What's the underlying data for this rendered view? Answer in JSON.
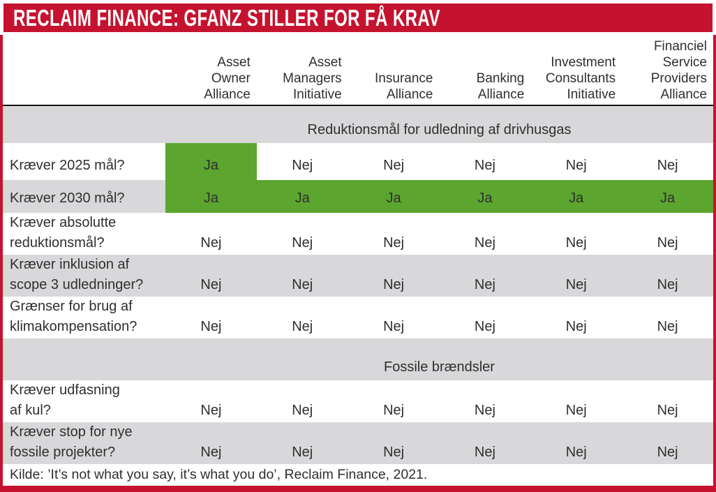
{
  "colors": {
    "red": "#c5132f",
    "green": "#5ca52e",
    "gray": "#d8d8db",
    "ink": "#2f2f2f"
  },
  "title_bar": {
    "title": "RECLAIM FINANCE: GFANZ STILLER FOR FÅ KRAV"
  },
  "table": {
    "columns": [
      {
        "lines": [
          "Asset",
          "Owner",
          "Alliance"
        ]
      },
      {
        "lines": [
          "Asset",
          "Managers",
          "Initiative"
        ]
      },
      {
        "lines": [
          "Insurance",
          "Alliance"
        ]
      },
      {
        "lines": [
          "Banking",
          "Alliance"
        ]
      },
      {
        "lines": [
          "Investment",
          "Consultants",
          "Initiative"
        ]
      },
      {
        "lines": [
          "Financiel",
          "Service",
          "Providers",
          "Alliance"
        ]
      }
    ],
    "sections": [
      {
        "title": "Reduktionsmål for udledning af drivhusgas",
        "rows": [
          {
            "label_lines": [
              "Kræver 2025 mål?"
            ],
            "values": [
              "Ja",
              "Nej",
              "Nej",
              "Nej",
              "Nej",
              "Nej"
            ]
          },
          {
            "label_lines": [
              "Kræver 2030 mål?"
            ],
            "values": [
              "Ja",
              "Ja",
              "Ja",
              "Ja",
              "Ja",
              "Ja"
            ]
          },
          {
            "label_lines": [
              "Kræver absolutte",
              "reduktionsmål?"
            ],
            "values": [
              "Nej",
              "Nej",
              "Nej",
              "Nej",
              "Nej",
              "Nej"
            ]
          },
          {
            "label_lines": [
              "Kræver inklusion af",
              "scope 3 udledninger?"
            ],
            "values": [
              "Nej",
              "Nej",
              "Nej",
              "Nej",
              "Nej",
              "Nej"
            ]
          },
          {
            "label_lines": [
              "Grænser for brug af",
              "klimakompensation?"
            ],
            "values": [
              "Nej",
              "Nej",
              "Nej",
              "Nej",
              "Nej",
              "Nej"
            ]
          }
        ]
      },
      {
        "title": "Fossile brændsler",
        "rows": [
          {
            "label_lines": [
              "Kræver udfasning",
              "af kul?"
            ],
            "values": [
              "Nej",
              "Nej",
              "Nej",
              "Nej",
              "Nej",
              "Nej"
            ]
          },
          {
            "label_lines": [
              "Kræver stop for nye",
              "fossile projekter?"
            ],
            "values": [
              "Nej",
              "Nej",
              "Nej",
              "Nej",
              "Nej",
              "Nej"
            ]
          }
        ]
      }
    ]
  },
  "source": "Kilde: ’It’s not what you say, it’s what you do’, Reclaim Finance, 2021.",
  "chart_data": {
    "type": "table",
    "title": "RECLAIM FINANCE: GFANZ STILLER FOR FÅ KRAV",
    "columns": [
      "Asset Owner Alliance",
      "Asset Managers Initiative",
      "Insurance Alliance",
      "Banking Alliance",
      "Investment Consultants Initiative",
      "Financiel Service Providers Alliance"
    ],
    "sections": [
      {
        "section": "Reduktionsmål for udledning af drivhusgas",
        "rows": [
          {
            "question": "Kræver 2025 mål?",
            "values": [
              "Ja",
              "Nej",
              "Nej",
              "Nej",
              "Nej",
              "Nej"
            ]
          },
          {
            "question": "Kræver 2030 mål?",
            "values": [
              "Ja",
              "Ja",
              "Ja",
              "Ja",
              "Ja",
              "Ja"
            ]
          },
          {
            "question": "Kræver absolutte reduktionsmål?",
            "values": [
              "Nej",
              "Nej",
              "Nej",
              "Nej",
              "Nej",
              "Nej"
            ]
          },
          {
            "question": "Kræver inklusion af scope 3 udledninger?",
            "values": [
              "Nej",
              "Nej",
              "Nej",
              "Nej",
              "Nej",
              "Nej"
            ]
          },
          {
            "question": "Grænser for brug af klimakompensation?",
            "values": [
              "Nej",
              "Nej",
              "Nej",
              "Nej",
              "Nej",
              "Nej"
            ]
          }
        ]
      },
      {
        "section": "Fossile brændsler",
        "rows": [
          {
            "question": "Kræver udfasning af kul?",
            "values": [
              "Nej",
              "Nej",
              "Nej",
              "Nej",
              "Nej",
              "Nej"
            ]
          },
          {
            "question": "Kræver stop for nye fossile projekter?",
            "values": [
              "Nej",
              "Nej",
              "Nej",
              "Nej",
              "Nej",
              "Nej"
            ]
          }
        ]
      }
    ],
    "highlight": "Ja-celler er markeret med grøn",
    "source": "Kilde: ’It’s not what you say, it’s what you do’, Reclaim Finance, 2021."
  }
}
